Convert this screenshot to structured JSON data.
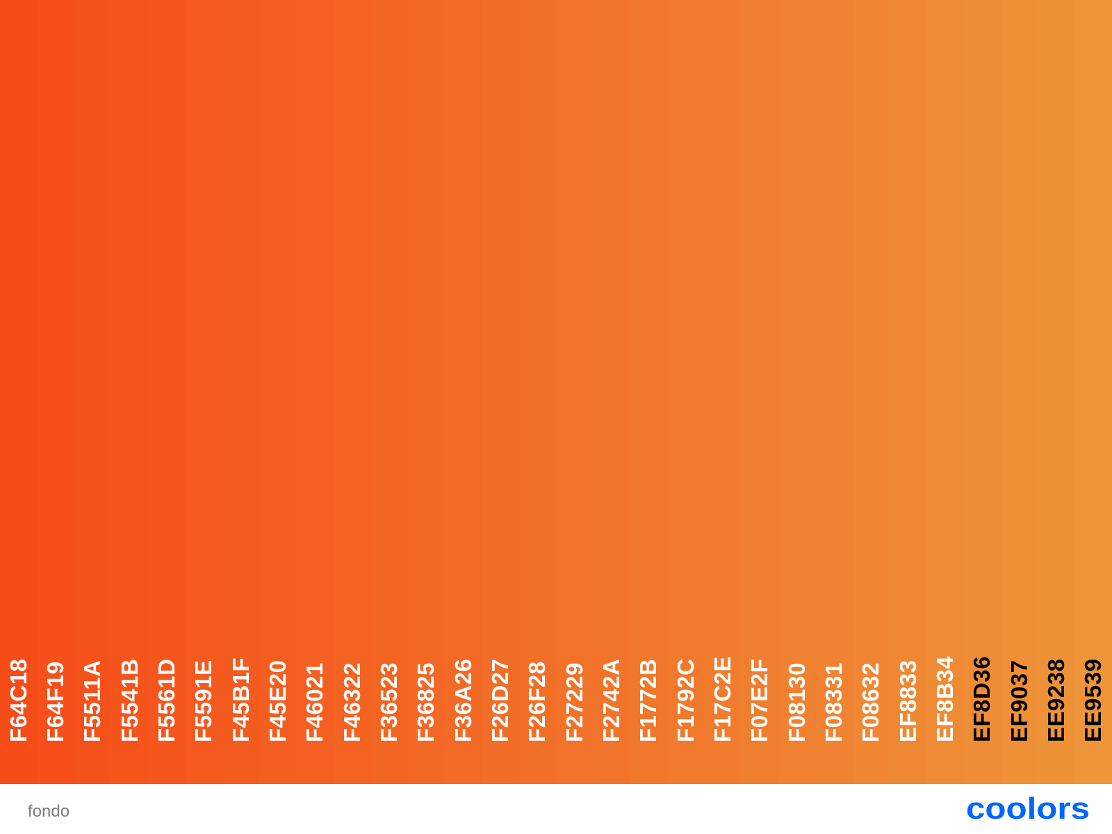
{
  "palette": {
    "swatches": [
      {
        "hex": "F64C18",
        "color": "#F64C18",
        "text_color": "#ffffff"
      },
      {
        "hex": "F64F19",
        "color": "#F64F19",
        "text_color": "#ffffff"
      },
      {
        "hex": "F5511A",
        "color": "#F5511A",
        "text_color": "#ffffff"
      },
      {
        "hex": "F5541B",
        "color": "#F5541B",
        "text_color": "#ffffff"
      },
      {
        "hex": "F5561D",
        "color": "#F5561D",
        "text_color": "#ffffff"
      },
      {
        "hex": "F5591E",
        "color": "#F5591E",
        "text_color": "#ffffff"
      },
      {
        "hex": "F45B1F",
        "color": "#F45B1F",
        "text_color": "#ffffff"
      },
      {
        "hex": "F45E20",
        "color": "#F45E20",
        "text_color": "#ffffff"
      },
      {
        "hex": "F46021",
        "color": "#F46021",
        "text_color": "#ffffff"
      },
      {
        "hex": "F46322",
        "color": "#F46322",
        "text_color": "#ffffff"
      },
      {
        "hex": "F36523",
        "color": "#F36523",
        "text_color": "#ffffff"
      },
      {
        "hex": "F36825",
        "color": "#F36825",
        "text_color": "#ffffff"
      },
      {
        "hex": "F36A26",
        "color": "#F36A26",
        "text_color": "#ffffff"
      },
      {
        "hex": "F26D27",
        "color": "#F26D27",
        "text_color": "#ffffff"
      },
      {
        "hex": "F26F28",
        "color": "#F26F28",
        "text_color": "#ffffff"
      },
      {
        "hex": "F27229",
        "color": "#F27229",
        "text_color": "#ffffff"
      },
      {
        "hex": "F2742A",
        "color": "#F2742A",
        "text_color": "#ffffff"
      },
      {
        "hex": "F1772B",
        "color": "#F1772B",
        "text_color": "#ffffff"
      },
      {
        "hex": "F1792C",
        "color": "#F1792C",
        "text_color": "#ffffff"
      },
      {
        "hex": "F17C2E",
        "color": "#F17C2E",
        "text_color": "#ffffff"
      },
      {
        "hex": "F07E2F",
        "color": "#F07E2F",
        "text_color": "#ffffff"
      },
      {
        "hex": "F08130",
        "color": "#F08130",
        "text_color": "#ffffff"
      },
      {
        "hex": "F08331",
        "color": "#F08331",
        "text_color": "#ffffff"
      },
      {
        "hex": "F08632",
        "color": "#F08632",
        "text_color": "#ffffff"
      },
      {
        "hex": "EF8833",
        "color": "#EF8833",
        "text_color": "#ffffff"
      },
      {
        "hex": "EF8B34",
        "color": "#EF8B34",
        "text_color": "#ffffff"
      },
      {
        "hex": "EF8D36",
        "color": "#EF8D36",
        "text_color": "#000000"
      },
      {
        "hex": "EF9037",
        "color": "#EF9037",
        "text_color": "#000000"
      },
      {
        "hex": "EE9238",
        "color": "#EE9238",
        "text_color": "#000000"
      },
      {
        "hex": "EE9539",
        "color": "#EE9539",
        "text_color": "#000000"
      }
    ]
  },
  "footer": {
    "palette_name": "fondo",
    "logo_text": "coolors",
    "logo_color": "#0066FF"
  }
}
